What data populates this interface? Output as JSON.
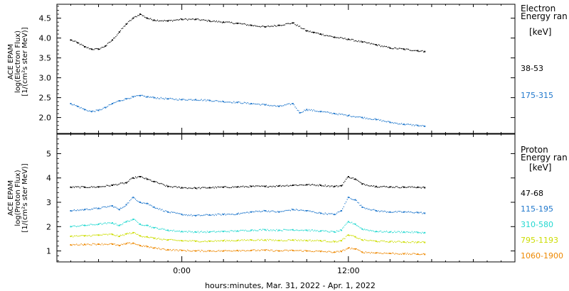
{
  "chart_data": [
    {
      "type": "scatter",
      "panel": "electron",
      "ylabel_lines": [
        "ACE EPAM",
        "log(Electron Flux)",
        "[1/(cm²s ster MeV)]"
      ],
      "ylim": [
        1.6,
        4.85
      ],
      "yticks": [
        2.0,
        2.5,
        3.0,
        3.5,
        4.0,
        4.5
      ],
      "ytick_labels": [
        "2.0",
        "2.5",
        "3.0",
        "3.5",
        "4.0",
        "4.5"
      ],
      "legend_title": [
        "Electron",
        "Energy ran"
      ],
      "legend_unit": "[keV]",
      "series": [
        {
          "name": "38-53",
          "color": "#000000",
          "x": [
            -8.0,
            -7.5,
            -7.0,
            -6.5,
            -6.0,
            -5.5,
            -5.0,
            -4.5,
            -4.0,
            -3.5,
            -3.0,
            -2.5,
            -2.0,
            -1.0,
            0.0,
            1.0,
            2.0,
            3.0,
            4.0,
            5.0,
            6.0,
            7.0,
            8.0,
            9.0,
            9.5,
            10.0,
            11.0,
            12.0,
            13.0,
            14.0,
            15.0,
            16.0,
            17.0,
            17.5
          ],
          "y": [
            3.95,
            3.88,
            3.78,
            3.72,
            3.72,
            3.8,
            3.95,
            4.15,
            4.35,
            4.5,
            4.6,
            4.5,
            4.45,
            4.43,
            4.47,
            4.47,
            4.43,
            4.4,
            4.37,
            4.32,
            4.28,
            4.32,
            4.38,
            4.18,
            4.14,
            4.1,
            4.02,
            3.97,
            3.9,
            3.83,
            3.75,
            3.72,
            3.68,
            3.66
          ]
        },
        {
          "name": "175-315",
          "color": "#1f77cc",
          "x": [
            -8.0,
            -7.5,
            -7.0,
            -6.5,
            -6.0,
            -5.5,
            -5.0,
            -4.5,
            -4.0,
            -3.5,
            -3.0,
            -2.5,
            -2.0,
            -1.0,
            0.0,
            1.0,
            2.0,
            3.0,
            4.0,
            5.0,
            6.0,
            7.0,
            8.0,
            8.5,
            9.0,
            10.0,
            11.0,
            12.0,
            13.0,
            14.0,
            15.0,
            16.0,
            17.0,
            17.5
          ],
          "y": [
            2.35,
            2.28,
            2.2,
            2.15,
            2.18,
            2.25,
            2.35,
            2.42,
            2.47,
            2.52,
            2.55,
            2.52,
            2.5,
            2.47,
            2.45,
            2.45,
            2.43,
            2.4,
            2.38,
            2.35,
            2.32,
            2.28,
            2.35,
            2.12,
            2.2,
            2.15,
            2.1,
            2.05,
            2.0,
            1.95,
            1.88,
            1.83,
            1.8,
            1.78
          ]
        }
      ]
    },
    {
      "type": "scatter",
      "panel": "proton",
      "ylabel_lines": [
        "ACE EPAM",
        "log(Proton Flux)",
        "[1/(cm²s ster MeV)]"
      ],
      "ylim": [
        0.55,
        5.8
      ],
      "yticks": [
        1,
        2,
        3,
        4,
        5
      ],
      "ytick_labels": [
        "1",
        "2",
        "3",
        "4",
        "5"
      ],
      "xticks": [
        0,
        12
      ],
      "xtick_labels": [
        "0:00",
        "12:00"
      ],
      "xlim": [
        -9,
        24
      ],
      "xlabel": "hours:minutes, Mar. 31, 2022 - Apr. 1, 2022",
      "legend_title": [
        "Proton",
        "Energy ran"
      ],
      "legend_unit": "[keV]",
      "series": [
        {
          "name": "47-68",
          "color": "#000000",
          "x": [
            -8.0,
            -7.0,
            -6.0,
            -5.0,
            -4.0,
            -3.5,
            -3.0,
            -2.5,
            -2.0,
            -1.0,
            0.0,
            1.0,
            2.0,
            3.0,
            4.0,
            5.0,
            6.0,
            7.0,
            8.0,
            9.0,
            10.0,
            11.0,
            11.5,
            12.0,
            12.5,
            13.0,
            14.0,
            15.0,
            16.0,
            17.0,
            17.5
          ],
          "y": [
            3.62,
            3.62,
            3.63,
            3.7,
            3.8,
            4.0,
            4.05,
            3.95,
            3.85,
            3.65,
            3.6,
            3.58,
            3.6,
            3.62,
            3.63,
            3.65,
            3.65,
            3.67,
            3.7,
            3.72,
            3.7,
            3.65,
            3.68,
            4.05,
            3.95,
            3.75,
            3.65,
            3.63,
            3.62,
            3.62,
            3.6
          ]
        },
        {
          "name": "115-195",
          "color": "#1f77cc",
          "x": [
            -8.0,
            -7.0,
            -6.0,
            -5.0,
            -4.5,
            -4.0,
            -3.5,
            -3.0,
            -2.5,
            -2.0,
            -1.0,
            0.0,
            1.0,
            2.0,
            3.0,
            4.0,
            5.0,
            6.0,
            7.0,
            8.0,
            9.0,
            10.0,
            11.0,
            11.5,
            12.0,
            12.5,
            13.0,
            14.0,
            15.0,
            16.0,
            17.0,
            17.5
          ],
          "y": [
            2.65,
            2.7,
            2.75,
            2.85,
            2.7,
            2.9,
            3.2,
            3.0,
            2.95,
            2.8,
            2.6,
            2.5,
            2.45,
            2.48,
            2.5,
            2.52,
            2.6,
            2.65,
            2.6,
            2.7,
            2.65,
            2.55,
            2.5,
            2.65,
            3.2,
            3.1,
            2.8,
            2.65,
            2.6,
            2.6,
            2.58,
            2.55
          ]
        },
        {
          "name": "310-580",
          "color": "#22d8d0",
          "x": [
            -8.0,
            -7.0,
            -6.0,
            -5.0,
            -4.5,
            -4.0,
            -3.5,
            -3.0,
            -2.5,
            -2.0,
            -1.0,
            0.0,
            1.0,
            2.0,
            3.0,
            4.0,
            5.0,
            6.0,
            7.0,
            8.0,
            9.0,
            10.0,
            11.0,
            11.5,
            12.0,
            12.5,
            13.0,
            14.0,
            15.0,
            16.0,
            17.0,
            17.5
          ],
          "y": [
            2.0,
            2.05,
            2.1,
            2.15,
            2.05,
            2.2,
            2.3,
            2.1,
            2.05,
            1.95,
            1.85,
            1.8,
            1.78,
            1.78,
            1.8,
            1.82,
            1.85,
            1.87,
            1.85,
            1.87,
            1.85,
            1.82,
            1.78,
            1.85,
            2.2,
            2.1,
            1.9,
            1.8,
            1.78,
            1.78,
            1.76,
            1.75
          ]
        },
        {
          "name": "795-1193",
          "color": "#ccdd00",
          "x": [
            -8.0,
            -7.0,
            -6.0,
            -5.0,
            -4.5,
            -4.0,
            -3.5,
            -3.0,
            -2.5,
            -2.0,
            -1.0,
            0.0,
            1.0,
            2.0,
            3.0,
            4.0,
            5.0,
            6.0,
            7.0,
            8.0,
            9.0,
            10.0,
            11.0,
            11.5,
            12.0,
            12.5,
            13.0,
            14.0,
            15.0,
            16.0,
            17.0,
            17.5
          ],
          "y": [
            1.6,
            1.62,
            1.65,
            1.68,
            1.6,
            1.7,
            1.75,
            1.62,
            1.58,
            1.52,
            1.45,
            1.42,
            1.4,
            1.4,
            1.42,
            1.43,
            1.45,
            1.45,
            1.43,
            1.45,
            1.43,
            1.42,
            1.38,
            1.42,
            1.65,
            1.58,
            1.45,
            1.4,
            1.38,
            1.37,
            1.36,
            1.35
          ]
        },
        {
          "name": "1060-1900",
          "color": "#ee8800",
          "x": [
            -8.0,
            -7.0,
            -6.0,
            -5.0,
            -4.5,
            -4.0,
            -3.5,
            -3.0,
            -2.5,
            -2.0,
            -1.0,
            0.0,
            1.0,
            2.0,
            3.0,
            4.0,
            5.0,
            6.0,
            7.0,
            8.0,
            9.0,
            10.0,
            11.0,
            11.5,
            12.0,
            12.5,
            13.0,
            14.0,
            15.0,
            16.0,
            17.0,
            17.5
          ],
          "y": [
            1.25,
            1.27,
            1.28,
            1.28,
            1.22,
            1.3,
            1.32,
            1.22,
            1.18,
            1.12,
            1.05,
            1.02,
            1.0,
            1.0,
            1.0,
            1.02,
            1.02,
            1.03,
            1.0,
            1.02,
            1.0,
            0.98,
            0.95,
            0.98,
            1.12,
            1.08,
            0.95,
            0.92,
            0.9,
            0.88,
            0.87,
            0.86
          ]
        }
      ]
    }
  ]
}
